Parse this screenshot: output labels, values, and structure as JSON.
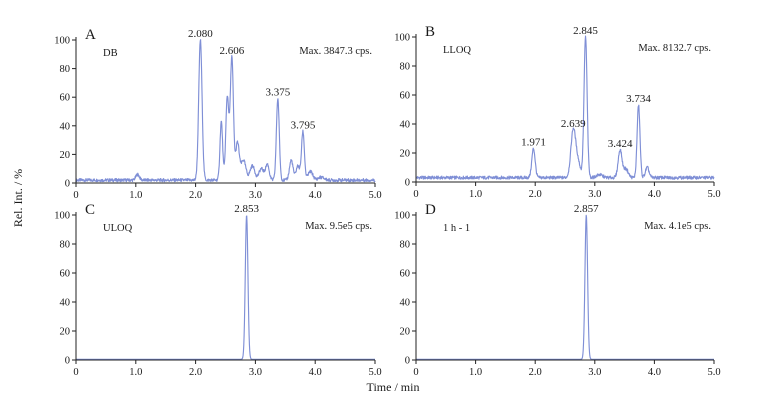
{
  "figure": {
    "ylabel": "Rel. Int. / %",
    "xlabel": "Time / min"
  },
  "colors": {
    "trace": "#7f8fd6",
    "axis": "#222222"
  },
  "chart_data": [
    {
      "type": "line",
      "panel": "A",
      "sample": "DB",
      "max_text": "Max. 3847.3 cps.",
      "xlim": [
        0,
        5
      ],
      "ylim": [
        0,
        100
      ],
      "xticks": [
        "0",
        "1.0",
        "2.0",
        "3.0",
        "4.0",
        "5.0"
      ],
      "yticks": [
        "0",
        "20",
        "40",
        "60",
        "80",
        "100"
      ],
      "baseline": 2,
      "peaks": [
        {
          "x": 1.03,
          "y": 6,
          "w": 0.03
        },
        {
          "x": 2.08,
          "y": 100,
          "w": 0.028,
          "label": "2.080"
        },
        {
          "x": 2.43,
          "y": 43,
          "w": 0.022
        },
        {
          "x": 2.53,
          "y": 60,
          "w": 0.025
        },
        {
          "x": 2.606,
          "y": 88,
          "w": 0.026,
          "label": "2.606"
        },
        {
          "x": 2.7,
          "y": 28,
          "w": 0.03
        },
        {
          "x": 2.8,
          "y": 16,
          "w": 0.04
        },
        {
          "x": 2.95,
          "y": 12,
          "w": 0.04
        },
        {
          "x": 3.1,
          "y": 10,
          "w": 0.04
        },
        {
          "x": 3.2,
          "y": 13,
          "w": 0.03
        },
        {
          "x": 3.375,
          "y": 59,
          "w": 0.024,
          "label": "3.375"
        },
        {
          "x": 3.6,
          "y": 16,
          "w": 0.03
        },
        {
          "x": 3.71,
          "y": 12,
          "w": 0.03
        },
        {
          "x": 3.795,
          "y": 36,
          "w": 0.024,
          "label": "3.795"
        },
        {
          "x": 3.92,
          "y": 8,
          "w": 0.04
        },
        {
          "x": 4.1,
          "y": 4,
          "w": 0.05
        }
      ]
    },
    {
      "type": "line",
      "panel": "B",
      "sample": "LLOQ",
      "max_text": "Max. 8132.7 cps.",
      "xlim": [
        0,
        5
      ],
      "ylim": [
        0,
        100
      ],
      "xticks": [
        "0",
        "1.0",
        "2.0",
        "3.0",
        "4.0",
        "5.0"
      ],
      "yticks": [
        "0",
        "20",
        "40",
        "60",
        "80",
        "100"
      ],
      "baseline": 3,
      "peaks": [
        {
          "x": 1.971,
          "y": 23,
          "w": 0.028,
          "label": "1.971"
        },
        {
          "x": 2.639,
          "y": 36,
          "w": 0.04,
          "label": "2.639"
        },
        {
          "x": 2.72,
          "y": 13,
          "w": 0.04
        },
        {
          "x": 2.845,
          "y": 100,
          "w": 0.026,
          "label": "2.845"
        },
        {
          "x": 3.08,
          "y": 5,
          "w": 0.05
        },
        {
          "x": 3.424,
          "y": 22,
          "w": 0.032,
          "label": "3.424"
        },
        {
          "x": 3.52,
          "y": 9,
          "w": 0.04
        },
        {
          "x": 3.734,
          "y": 53,
          "w": 0.024,
          "label": "3.734"
        },
        {
          "x": 3.88,
          "y": 10,
          "w": 0.03
        }
      ]
    },
    {
      "type": "line",
      "panel": "C",
      "sample": "ULOQ",
      "max_text": "Max. 9.5e5 cps.",
      "xlim": [
        0,
        5
      ],
      "ylim": [
        0,
        100
      ],
      "xticks": [
        "0",
        "1.0",
        "2.0",
        "3.0",
        "4.0",
        "5.0"
      ],
      "yticks": [
        "0",
        "20",
        "40",
        "60",
        "80",
        "100"
      ],
      "baseline": 0.5,
      "peaks": [
        {
          "x": 2.853,
          "y": 100,
          "w": 0.022,
          "label": "2.853"
        }
      ]
    },
    {
      "type": "line",
      "panel": "D",
      "sample": "1 h - 1",
      "max_text": "Max. 4.1e5 cps.",
      "xlim": [
        0,
        5
      ],
      "ylim": [
        0,
        100
      ],
      "xticks": [
        "0",
        "1.0",
        "2.0",
        "3.0",
        "4.0",
        "5.0"
      ],
      "yticks": [
        "0",
        "20",
        "40",
        "60",
        "80",
        "100"
      ],
      "baseline": 0.5,
      "peaks": [
        {
          "x": 2.857,
          "y": 100,
          "w": 0.022,
          "label": "2.857"
        }
      ]
    }
  ]
}
